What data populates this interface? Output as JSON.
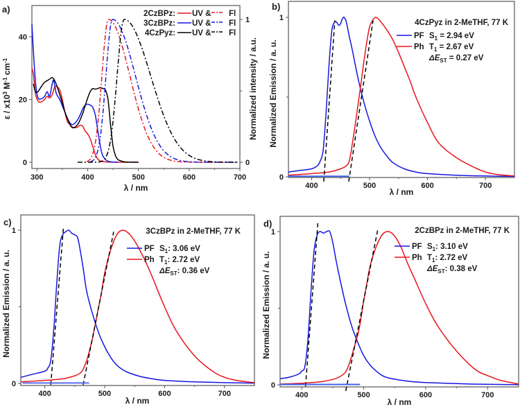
{
  "chart_data": [
    {
      "panel": "a",
      "type": "line",
      "panel_label": "a)",
      "xlabel": "λ / nm",
      "ylabel": "ε / x10³ M⁻¹ cm⁻¹",
      "ylabel_parts": {
        "base": "ε / x10",
        "sup1": "3",
        "mid": " M",
        "sup2": "-1",
        "end": " cm",
        "sup3": "-1"
      },
      "y2label": "Normalized intensity / a.u.",
      "xlim": [
        290,
        700
      ],
      "ylim": [
        -2,
        50
      ],
      "y2lim": [
        -0.04,
        1.1
      ],
      "xticks": [
        300,
        400,
        500,
        600,
        700
      ],
      "yticks": [
        0,
        20,
        40
      ],
      "y2ticks": [
        0,
        1
      ],
      "grid": false,
      "legend_position": "top-right",
      "legend": [
        {
          "name": "2CzBPz:",
          "uv": "UV &",
          "fl": "Fl",
          "color": "#e8131b"
        },
        {
          "name": "3CzBPz:",
          "uv": "UV &",
          "fl": "Fl",
          "color": "#1515e0"
        },
        {
          "name": "4CzPyz:",
          "uv": "UV &",
          "fl": "Fl",
          "color": "#000000"
        }
      ],
      "series": [
        {
          "name": "2CzBPz UV",
          "color": "#e8131b",
          "style": "solid",
          "axis": "left",
          "x": [
            290,
            293,
            297,
            302,
            308,
            315,
            320,
            325,
            330,
            335,
            340,
            345,
            350,
            355,
            360,
            365,
            370,
            375,
            380,
            385,
            390,
            395,
            400,
            405,
            410,
            415,
            420,
            425,
            430,
            440,
            460,
            500
          ],
          "y": [
            30,
            28,
            22,
            19.5,
            19.2,
            20,
            21,
            20.5,
            21.5,
            24,
            24,
            23,
            20,
            16,
            13,
            12,
            11.2,
            11,
            11.2,
            11.8,
            11.5,
            10,
            9,
            7.5,
            5,
            2.5,
            1,
            0.4,
            0.2,
            0.05,
            0,
            0
          ]
        },
        {
          "name": "3CzBPz UV",
          "color": "#1515e0",
          "style": "solid",
          "axis": "left",
          "x": [
            290,
            292,
            295,
            298,
            302,
            308,
            315,
            320,
            325,
            330,
            333,
            338,
            345,
            350,
            355,
            360,
            365,
            370,
            375,
            380,
            385,
            390,
            395,
            400,
            405,
            410,
            415,
            420,
            425,
            430,
            440,
            460
          ],
          "y": [
            44,
            38,
            30,
            24,
            20.5,
            20.2,
            21,
            22.5,
            21,
            25,
            26,
            22,
            20,
            18,
            16,
            14,
            12.5,
            12,
            12.5,
            13.5,
            15,
            17,
            18.2,
            18.5,
            18.2,
            17.5,
            15,
            10,
            5,
            2,
            0.3,
            0
          ]
        },
        {
          "name": "4CzPyz UV",
          "color": "#000000",
          "style": "solid",
          "axis": "left",
          "x": [
            293,
            297,
            302,
            308,
            315,
            320,
            325,
            330,
            335,
            340,
            345,
            350,
            355,
            360,
            365,
            370,
            375,
            380,
            385,
            390,
            395,
            400,
            405,
            410,
            415,
            420,
            425,
            430,
            435,
            440,
            445,
            450,
            455,
            460,
            470,
            480,
            500
          ],
          "y": [
            25,
            22.5,
            22.5,
            24,
            25.5,
            26,
            26.5,
            27,
            26,
            24,
            21.5,
            19,
            16,
            14,
            12,
            11,
            11.2,
            12,
            13.5,
            15.5,
            18,
            20.5,
            22.5,
            23.5,
            23.3,
            23.5,
            23.8,
            23.5,
            23,
            20,
            12,
            5,
            2,
            0.8,
            0.2,
            0.05,
            0
          ]
        },
        {
          "name": "2CzBPz Fl",
          "color": "#e8131b",
          "style": "dashdot",
          "axis": "right",
          "peak": 441,
          "rise_width": 13,
          "fall_width": 42,
          "start": 398,
          "end": 695
        },
        {
          "name": "3CzBPz Fl",
          "color": "#1515e0",
          "style": "dashdot",
          "axis": "right",
          "peak": 449,
          "rise_width": 13,
          "fall_width": 45,
          "start": 405,
          "end": 695
        },
        {
          "name": "4CzPyz Fl",
          "color": "#000000",
          "style": "dashdot",
          "axis": "right",
          "peak": 472,
          "rise_width": 14,
          "fall_width": 52,
          "start": 380,
          "end": 695
        }
      ]
    },
    {
      "panel": "b",
      "type": "line",
      "panel_label": "b)",
      "title": "4CzPyz in 2-MeTHF, 77 K",
      "xlabel": "λ / nm",
      "ylabel": "Normalized Emission / a. u.",
      "xlim": [
        360,
        750
      ],
      "ylim": [
        0,
        1
      ],
      "xticks": [
        400,
        500,
        600,
        700
      ],
      "yticks": [
        0,
        1
      ],
      "grid": false,
      "legend_position": "top-right",
      "legend": [
        {
          "name": "PF",
          "color": "#1515e0",
          "value_label": "S",
          "value_sub": "1",
          "value_text": " = 2.94 eV"
        },
        {
          "name": "Ph",
          "color": "#e8131b",
          "value_label": "T",
          "value_sub": "1",
          "value_text": " = 2.67 eV"
        }
      ],
      "delta": {
        "label": "ΔE",
        "sub": "ST",
        "text": " = 0.27 eV"
      },
      "series": [
        {
          "name": "PF",
          "color": "#1515e0",
          "x": [
            360,
            380,
            400,
            410,
            415,
            420,
            425,
            430,
            435,
            440,
            443,
            447,
            450,
            453,
            456,
            460,
            465,
            470,
            480,
            490,
            500,
            510,
            520,
            530,
            540,
            560,
            580,
            600,
            650,
            700,
            750
          ],
          "y": [
            0.03,
            0.04,
            0.05,
            0.07,
            0.1,
            0.17,
            0.4,
            0.7,
            0.92,
            0.97,
            0.97,
            0.95,
            0.96,
            0.99,
            1.0,
            0.97,
            0.88,
            0.8,
            0.62,
            0.47,
            0.35,
            0.25,
            0.18,
            0.13,
            0.09,
            0.05,
            0.03,
            0.02,
            0.01,
            0.005,
            0.002
          ]
        },
        {
          "name": "Ph",
          "color": "#e8131b",
          "x": [
            360,
            400,
            430,
            450,
            460,
            465,
            470,
            475,
            480,
            485,
            490,
            495,
            500,
            505,
            510,
            515,
            520,
            530,
            540,
            550,
            560,
            570,
            580,
            600,
            620,
            650,
            680,
            700,
            720,
            750
          ],
          "y": [
            0.01,
            0.02,
            0.03,
            0.05,
            0.07,
            0.1,
            0.2,
            0.32,
            0.45,
            0.58,
            0.72,
            0.84,
            0.94,
            0.98,
            1.0,
            0.99,
            0.97,
            0.92,
            0.86,
            0.78,
            0.69,
            0.6,
            0.5,
            0.34,
            0.21,
            0.12,
            0.06,
            0.03,
            0.015,
            0.005
          ]
        },
        {
          "name": "PF onset fit",
          "style": "dashed",
          "color": "#000000",
          "x": [
            421,
            440
          ],
          "y": [
            -0.03,
            0.98
          ]
        },
        {
          "name": "Ph onset fit",
          "style": "dashed",
          "color": "#000000",
          "x": [
            464,
            506
          ],
          "y": [
            -0.03,
            0.98
          ]
        },
        {
          "name": "baseline",
          "style": "solid",
          "color": "#3f5ff0",
          "x": [
            360,
            465
          ],
          "y": [
            0.003,
            0.003
          ]
        }
      ]
    },
    {
      "panel": "c",
      "type": "line",
      "panel_label": "c)",
      "title": "3CzBPz in 2-MeTHF, 77 K",
      "xlabel": "λ / nm",
      "ylabel": "Normalized Emission / a. u.",
      "xlim": [
        360,
        750
      ],
      "ylim": [
        0,
        1
      ],
      "xticks": [
        400,
        500,
        600,
        700
      ],
      "yticks": [
        0,
        1
      ],
      "grid": false,
      "legend_position": "top-right",
      "legend": [
        {
          "name": "PF",
          "color": "#1515e0",
          "value_label": "S",
          "value_sub": "1",
          "value_text": ": 3.06 eV"
        },
        {
          "name": "Ph",
          "color": "#e8131b",
          "value_label": "T",
          "value_sub": "1",
          "value_text": ": 2.72 eV"
        }
      ],
      "delta": {
        "label": "ΔE",
        "sub": "ST",
        "text": ": 0.36 eV"
      },
      "series": [
        {
          "name": "PF",
          "color": "#1515e0",
          "x": [
            360,
            380,
            400,
            405,
            410,
            415,
            420,
            425,
            430,
            435,
            440,
            445,
            450,
            455,
            460,
            465,
            470,
            480,
            490,
            500,
            510,
            520,
            530,
            540,
            560,
            580,
            600,
            650,
            700,
            750
          ],
          "y": [
            0.04,
            0.06,
            0.08,
            0.1,
            0.15,
            0.35,
            0.65,
            0.9,
            0.97,
            0.99,
            1.0,
            0.98,
            0.97,
            0.95,
            0.85,
            0.73,
            0.6,
            0.45,
            0.33,
            0.24,
            0.17,
            0.12,
            0.09,
            0.07,
            0.045,
            0.03,
            0.02,
            0.01,
            0.005,
            0.002
          ]
        },
        {
          "name": "Ph",
          "color": "#e8131b",
          "x": [
            360,
            400,
            430,
            450,
            460,
            465,
            470,
            475,
            480,
            485,
            490,
            495,
            500,
            510,
            520,
            530,
            540,
            550,
            560,
            570,
            580,
            600,
            620,
            650,
            680,
            700,
            720,
            750
          ],
          "y": [
            0.01,
            0.02,
            0.03,
            0.05,
            0.07,
            0.1,
            0.15,
            0.22,
            0.3,
            0.4,
            0.5,
            0.6,
            0.72,
            0.87,
            0.97,
            1.0,
            0.98,
            0.93,
            0.86,
            0.78,
            0.69,
            0.5,
            0.34,
            0.18,
            0.08,
            0.04,
            0.02,
            0.005
          ]
        },
        {
          "name": "PF onset fit",
          "style": "dashed",
          "color": "#000000",
          "x": [
            410,
            431
          ],
          "y": [
            -0.01,
            1.01
          ]
        },
        {
          "name": "Ph onset fit",
          "style": "dashed",
          "color": "#000000",
          "x": [
            464,
            515
          ],
          "y": [
            -0.01,
            0.99
          ]
        },
        {
          "name": "baseline",
          "style": "solid",
          "color": "#5a6bf0",
          "x": [
            363,
            474
          ],
          "y": [
            0.003,
            0.003
          ]
        }
      ]
    },
    {
      "panel": "d",
      "type": "line",
      "panel_label": "d)",
      "title": "2CzBPz in 2-MeTHF, 77 K",
      "xlabel": "λ / nm",
      "ylabel": "Normalized Emission / a. u.",
      "xlim": [
        365,
        750
      ],
      "ylim": [
        0,
        1
      ],
      "xticks": [
        400,
        500,
        600,
        700
      ],
      "yticks": [
        0,
        1
      ],
      "grid": false,
      "legend_position": "top-right",
      "legend": [
        {
          "name": "PF",
          "color": "#1515e0",
          "value_label": "S",
          "value_sub": "1",
          "value_text": ": 3.10 eV"
        },
        {
          "name": "Ph",
          "color": "#e8131b",
          "value_label": "T",
          "value_sub": "1",
          "value_text": ": 2.72 eV"
        }
      ],
      "delta": {
        "label": "ΔE",
        "sub": "ST",
        "text": ": 0.38 eV"
      },
      "series": [
        {
          "name": "PF",
          "color": "#1515e0",
          "x": [
            365,
            380,
            395,
            400,
            405,
            410,
            415,
            420,
            425,
            430,
            435,
            440,
            445,
            450,
            455,
            460,
            470,
            480,
            490,
            500,
            510,
            520,
            530,
            540,
            560,
            580,
            600,
            650,
            700,
            750
          ],
          "y": [
            0.04,
            0.05,
            0.07,
            0.09,
            0.12,
            0.3,
            0.62,
            0.88,
            0.98,
            1.0,
            0.99,
            1.0,
            1.0,
            0.93,
            0.82,
            0.72,
            0.54,
            0.39,
            0.28,
            0.19,
            0.13,
            0.09,
            0.06,
            0.045,
            0.03,
            0.02,
            0.015,
            0.008,
            0.003,
            0.001
          ]
        },
        {
          "name": "Ph",
          "color": "#e8131b",
          "x": [
            365,
            400,
            430,
            450,
            460,
            470,
            475,
            480,
            485,
            490,
            495,
            500,
            505,
            510,
            520,
            530,
            540,
            550,
            560,
            570,
            580,
            600,
            620,
            650,
            680,
            700,
            720,
            750
          ],
          "y": [
            0.005,
            0.01,
            0.02,
            0.035,
            0.05,
            0.08,
            0.12,
            0.18,
            0.25,
            0.32,
            0.42,
            0.55,
            0.66,
            0.77,
            0.9,
            0.98,
            1.0,
            0.97,
            0.9,
            0.8,
            0.71,
            0.53,
            0.38,
            0.22,
            0.1,
            0.06,
            0.03,
            0.005
          ]
        },
        {
          "name": "PF onset fit",
          "style": "dashed",
          "color": "#000000",
          "x": [
            406,
            426
          ],
          "y": [
            -0.01,
            1.06
          ]
        },
        {
          "name": "Ph onset fit",
          "style": "dashed",
          "color": "#000000",
          "x": [
            471,
            523
          ],
          "y": [
            -0.04,
            1.02
          ]
        },
        {
          "name": "baseline",
          "style": "solid",
          "color": "#3f5ff0",
          "x": [
            365,
            494
          ],
          "y": [
            0.002,
            0.002
          ]
        }
      ]
    }
  ]
}
